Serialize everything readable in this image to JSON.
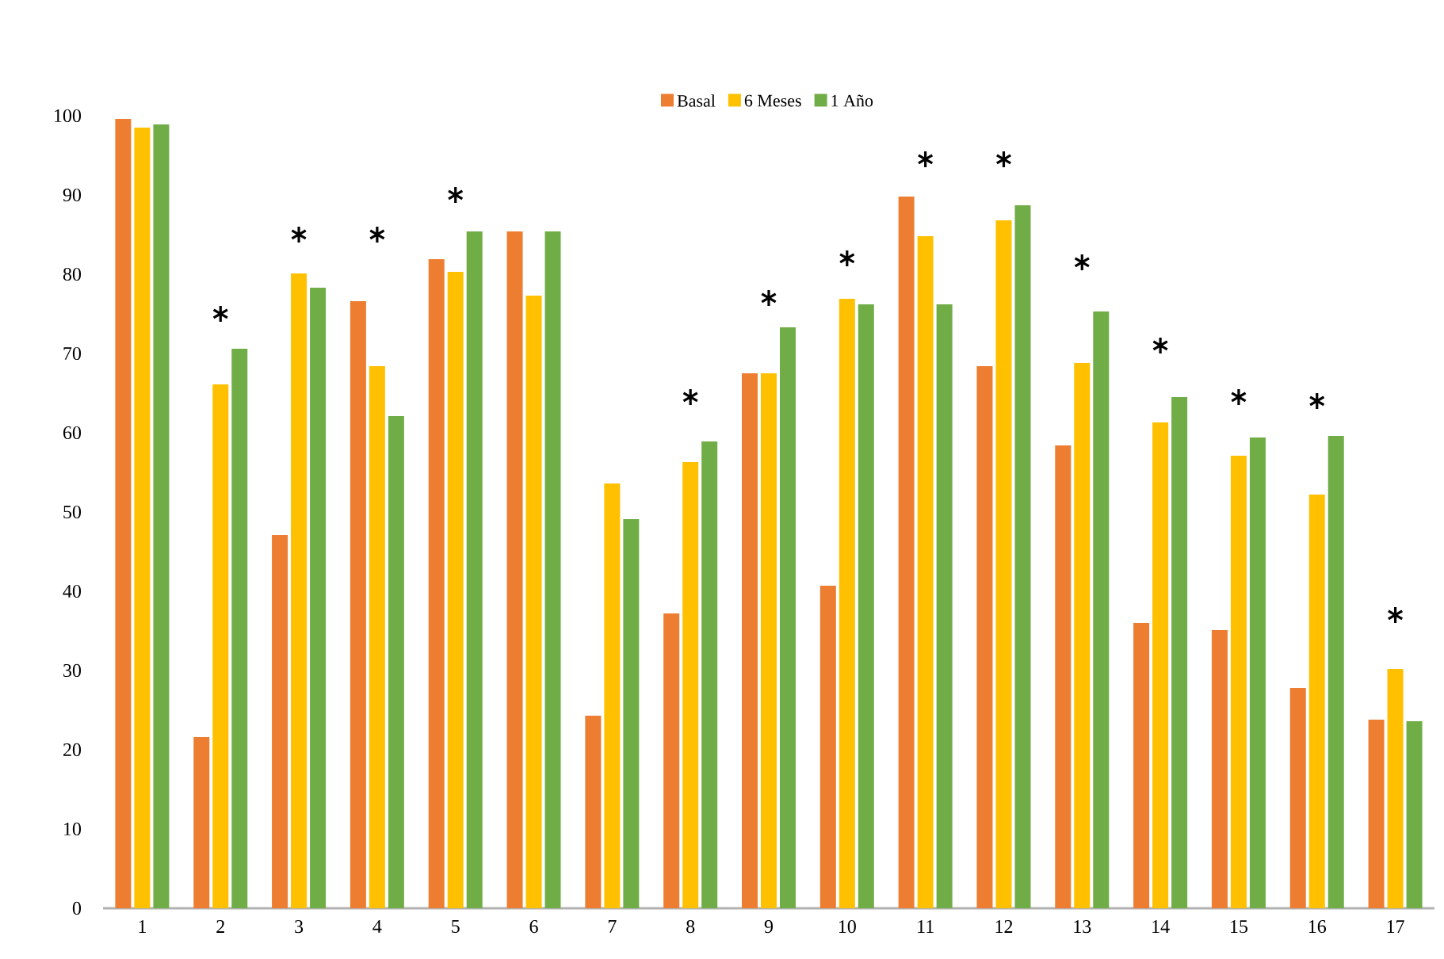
{
  "chart_data": {
    "type": "bar",
    "categories": [
      "1",
      "2",
      "3",
      "4",
      "5",
      "6",
      "7",
      "8",
      "9",
      "10",
      "11",
      "12",
      "13",
      "14",
      "15",
      "16",
      "17"
    ],
    "series": [
      {
        "name": "Basal",
        "color": "#ed7d31",
        "values": [
          99.6,
          21.6,
          47.1,
          76.6,
          81.9,
          85.4,
          24.3,
          37.2,
          67.5,
          40.7,
          89.8,
          68.4,
          58.4,
          36.0,
          35.1,
          27.8,
          23.8
        ]
      },
      {
        "name": "6 Meses",
        "color": "#ffc000",
        "values": [
          98.5,
          66.1,
          80.1,
          68.4,
          80.3,
          77.3,
          53.6,
          56.3,
          67.5,
          76.9,
          84.8,
          86.8,
          68.8,
          61.3,
          57.1,
          52.2,
          30.2
        ]
      },
      {
        "name": "1 Año",
        "color": "#70ad47",
        "values": [
          98.9,
          70.6,
          78.3,
          62.1,
          85.4,
          85.4,
          49.1,
          58.9,
          73.3,
          76.2,
          76.2,
          88.7,
          75.3,
          64.5,
          59.4,
          59.6,
          23.6
        ]
      },
      {
        "type": "scatter",
        "marker": "cross",
        "color": "#000000",
        "x": [
          "2",
          "3",
          "4",
          "5",
          "8",
          "9",
          "10",
          "11",
          "12",
          "13",
          "14",
          "15",
          "16",
          "17"
        ],
        "values": [
          75,
          85,
          85,
          90,
          64.5,
          77,
          82,
          94.5,
          94.5,
          81.5,
          71,
          64.5,
          64,
          37
        ]
      }
    ],
    "ylim": [
      0,
      100
    ],
    "yticks": [
      0,
      10,
      20,
      30,
      40,
      50,
      60,
      70,
      80,
      90,
      100
    ],
    "grid": false,
    "legend": "top"
  }
}
